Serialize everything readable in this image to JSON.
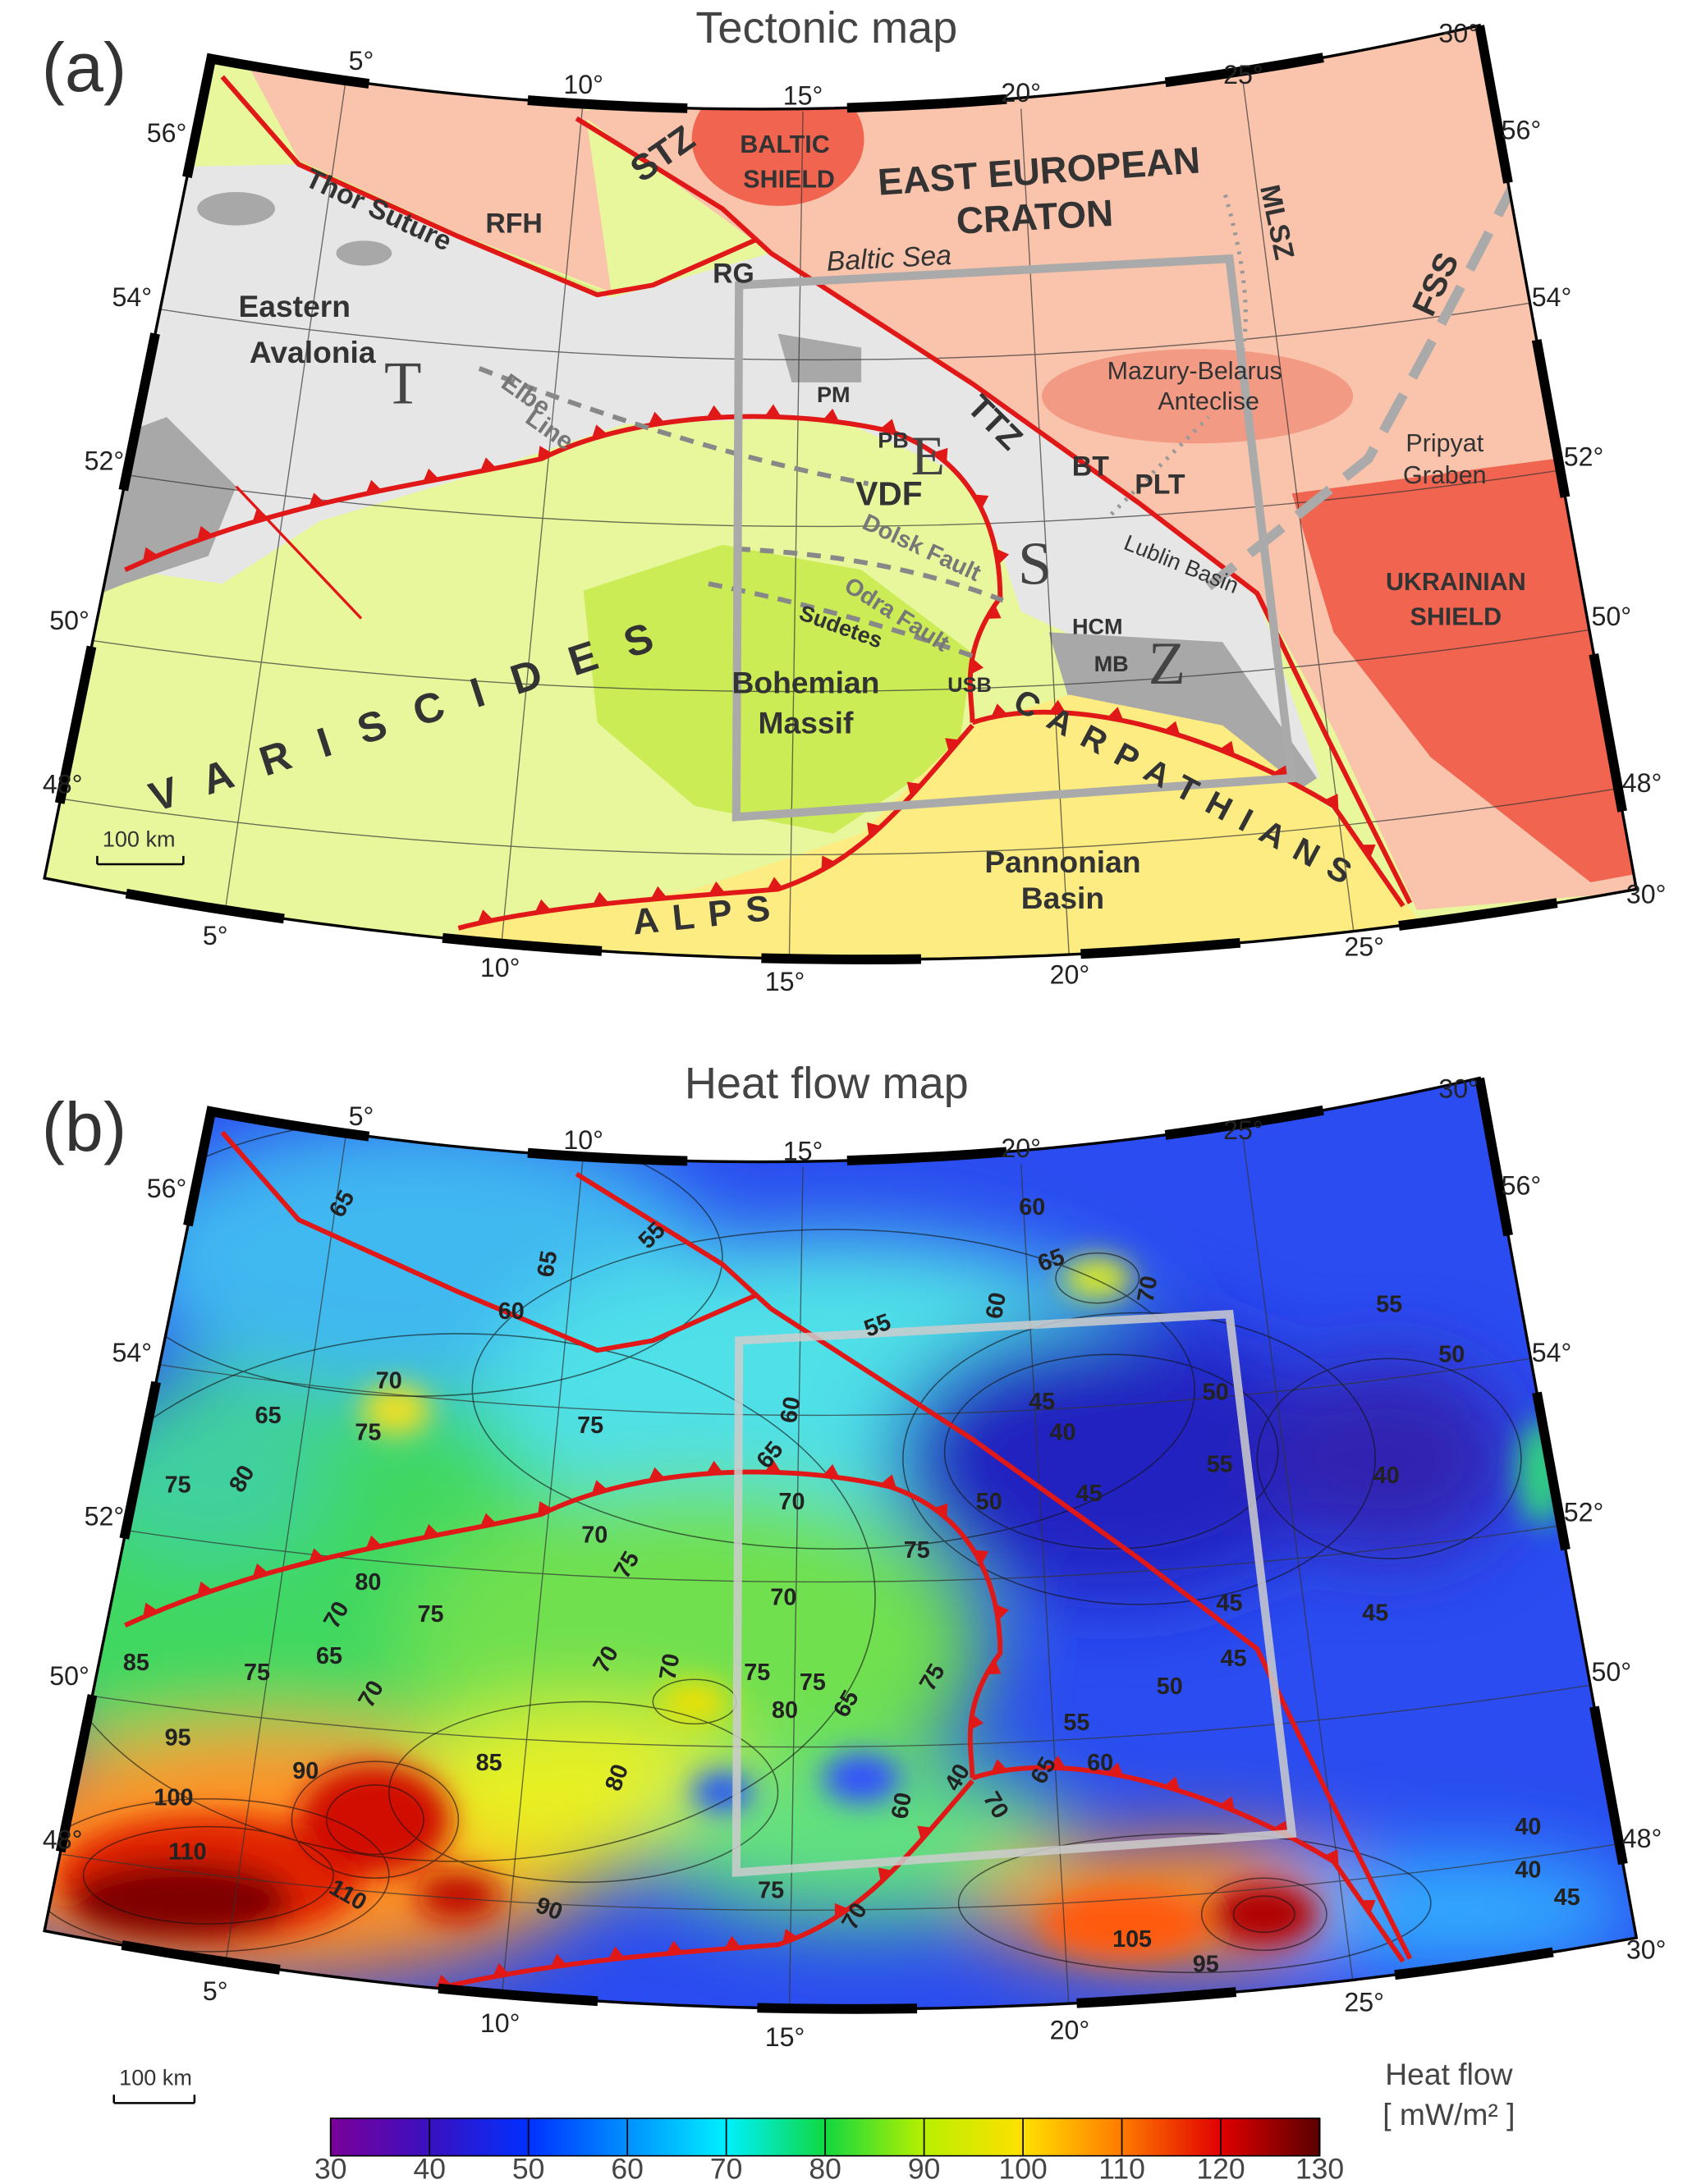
{
  "panels": [
    {
      "label": "(a)",
      "title": "Tectonic map",
      "lon_top": [
        "5°",
        "10°",
        "15°",
        "20°",
        "25°",
        "30°"
      ],
      "lon_bottom": [
        "5°",
        "10°",
        "15°",
        "20°",
        "25°",
        "30°"
      ],
      "lat_left": [
        "56°",
        "54°",
        "52°",
        "50°",
        "48°"
      ],
      "lat_right": [
        "56°",
        "54°",
        "52°",
        "50°",
        "48°"
      ],
      "scale_bar": "100 km",
      "labels": [
        "STZ",
        "BALTIC",
        "SHIELD",
        "EAST EUROPEAN",
        "CRATON",
        "MLSZ",
        "Thor Suture",
        "RFH",
        "RG",
        "Baltic Sea",
        "FSS",
        "Eastern",
        "Avalonia",
        "T",
        "Mazury-Belarus",
        "Anteclise",
        "Elbe",
        "Line",
        "PM",
        "PB",
        "E",
        "TTZ",
        "BT",
        "PLT",
        "Pripyat",
        "Graben",
        "VDF",
        "Dolsk Fault",
        "S",
        "Lublin Basin",
        "UKRAINIAN",
        "SHIELD",
        "Odra Fault",
        "Sudetes",
        "HCM",
        "MB",
        "Z",
        "VARISCIDES",
        "Bohemian",
        "Massif",
        "USB",
        "CARPATHIANS",
        "Pannonian",
        "Basin",
        "ALPS"
      ]
    },
    {
      "label": "(b)",
      "title": "Heat flow map",
      "lon_top": [
        "5°",
        "10°",
        "15°",
        "20°",
        "25°",
        "30°"
      ],
      "lon_bottom": [
        "5°",
        "10°",
        "15°",
        "20°",
        "25°",
        "30°"
      ],
      "lat_left": [
        "56°",
        "54°",
        "52°",
        "50°",
        "48°"
      ],
      "lat_right": [
        "56°",
        "54°",
        "52°",
        "50°",
        "48°"
      ],
      "scale_bar": "100 km",
      "contour_labels": [
        65,
        65,
        60,
        55,
        60,
        65,
        70,
        60,
        55,
        55,
        50,
        70,
        65,
        75,
        75,
        60,
        65,
        70,
        75,
        50,
        40,
        45,
        50,
        55,
        45,
        40,
        75,
        80,
        70,
        75,
        80,
        70,
        75,
        65,
        85,
        75,
        70,
        70,
        70,
        70,
        75,
        80,
        75,
        65,
        75,
        45,
        45,
        45,
        50,
        55,
        60,
        95,
        90,
        100,
        85,
        80,
        110,
        110,
        90,
        60,
        40,
        70,
        65,
        75,
        70,
        105,
        95,
        40,
        40,
        45
      ]
    }
  ],
  "colorbar": {
    "title": "Heat flow",
    "unit": "[ mW/m² ]",
    "lim": [
      30,
      130
    ],
    "ticks": [
      30,
      40,
      50,
      60,
      70,
      80,
      90,
      100,
      110,
      120,
      130
    ],
    "colors": [
      "#7a0099",
      "#3a10c0",
      "#0030ff",
      "#0090ff",
      "#00f0ff",
      "#10d840",
      "#b8f000",
      "#ffe000",
      "#ff7a00",
      "#e00000",
      "#5a0000"
    ]
  }
}
